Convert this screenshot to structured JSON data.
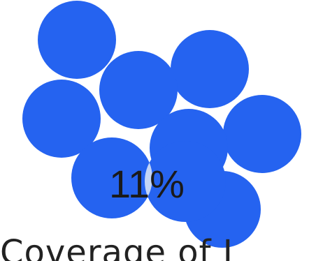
{
  "chart_data": {
    "type": "venn",
    "sets_count": 9,
    "overlap_label": "11%",
    "caption": "Coverage of I",
    "colors": {
      "set": "#2563f0",
      "overlap": "#c4d5f6",
      "label": "#1a1a1a",
      "caption": "#222222"
    }
  }
}
